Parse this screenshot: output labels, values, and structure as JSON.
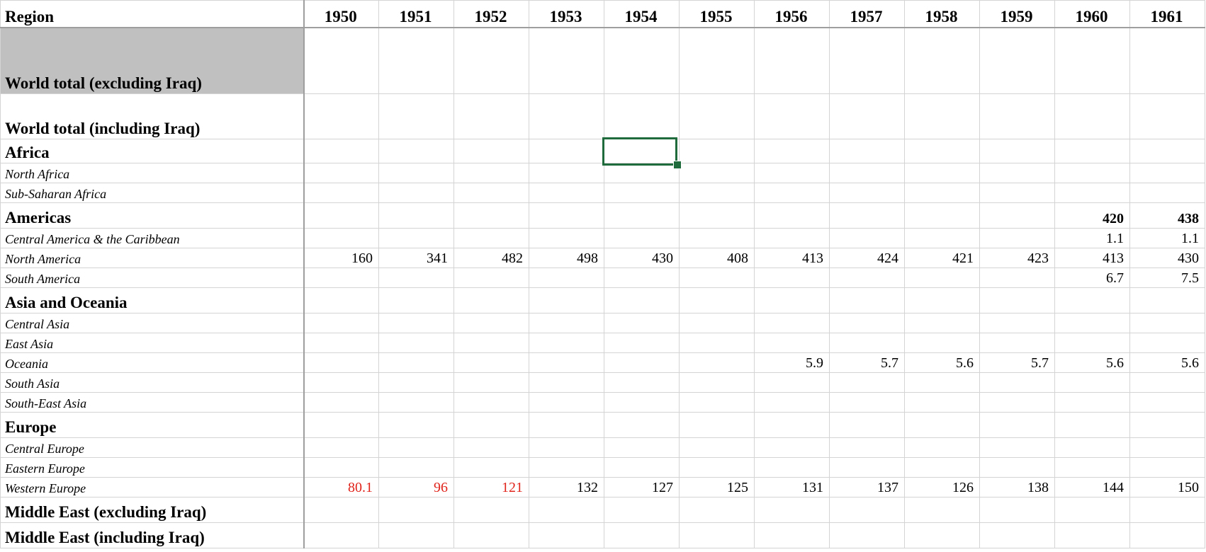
{
  "sheet": {
    "header": {
      "region_label": "Region",
      "years": [
        "1950",
        "1951",
        "1952",
        "1953",
        "1954",
        "1955",
        "1956",
        "1957",
        "1958",
        "1959",
        "1960",
        "1961"
      ]
    },
    "rows": [
      {
        "label": "World total (excluding Iraq)",
        "level": 0,
        "shaded": true,
        "values": [
          "",
          "",
          "",
          "",
          "",
          "",
          "",
          "",
          "",
          "",
          "",
          ""
        ]
      },
      {
        "label": "World total (including Iraq)",
        "level": 0,
        "values": [
          "",
          "",
          "",
          "",
          "",
          "",
          "",
          "",
          "",
          "",
          "",
          ""
        ]
      },
      {
        "label": "Africa",
        "level": 0,
        "values": [
          "",
          "",
          "",
          "",
          "",
          "",
          "",
          "",
          "",
          "",
          "",
          ""
        ]
      },
      {
        "label": "North Africa",
        "level": 1,
        "values": [
          "",
          "",
          "",
          "",
          "",
          "",
          "",
          "",
          "",
          "",
          "",
          ""
        ]
      },
      {
        "label": "Sub-Saharan Africa",
        "level": 1,
        "values": [
          "",
          "",
          "",
          "",
          "",
          "",
          "",
          "",
          "",
          "",
          "",
          ""
        ]
      },
      {
        "label": "Americas",
        "level": 0,
        "values": [
          "",
          "",
          "",
          "",
          "",
          "",
          "",
          "",
          "",
          "",
          "420",
          "438"
        ]
      },
      {
        "label": "Central America & the Caribbean",
        "level": 1,
        "values": [
          "",
          "",
          "",
          "",
          "",
          "",
          "",
          "",
          "",
          "",
          "1.1",
          "1.1"
        ]
      },
      {
        "label": "North America",
        "level": 1,
        "values": [
          "160",
          "341",
          "482",
          "498",
          "430",
          "408",
          "413",
          "424",
          "421",
          "423",
          "413",
          "430"
        ]
      },
      {
        "label": "South America",
        "level": 1,
        "values": [
          "",
          "",
          "",
          "",
          "",
          "",
          "",
          "",
          "",
          "",
          "6.7",
          "7.5"
        ]
      },
      {
        "label": "Asia and Oceania",
        "level": 0,
        "values": [
          "",
          "",
          "",
          "",
          "",
          "",
          "",
          "",
          "",
          "",
          "",
          ""
        ]
      },
      {
        "label": "Central Asia",
        "level": 1,
        "values": [
          "",
          "",
          "",
          "",
          "",
          "",
          "",
          "",
          "",
          "",
          "",
          ""
        ]
      },
      {
        "label": "East Asia",
        "level": 1,
        "values": [
          "",
          "",
          "",
          "",
          "",
          "",
          "",
          "",
          "",
          "",
          "",
          ""
        ]
      },
      {
        "label": "Oceania",
        "level": 1,
        "values": [
          "",
          "",
          "",
          "",
          "",
          "",
          "5.9",
          "5.7",
          "5.6",
          "5.7",
          "5.6",
          "5.6"
        ]
      },
      {
        "label": "South Asia",
        "level": 1,
        "values": [
          "",
          "",
          "",
          "",
          "",
          "",
          "",
          "",
          "",
          "",
          "",
          ""
        ]
      },
      {
        "label": "South-East Asia",
        "level": 1,
        "values": [
          "",
          "",
          "",
          "",
          "",
          "",
          "",
          "",
          "",
          "",
          "",
          ""
        ]
      },
      {
        "label": "Europe",
        "level": 0,
        "values": [
          "",
          "",
          "",
          "",
          "",
          "",
          "",
          "",
          "",
          "",
          "",
          ""
        ]
      },
      {
        "label": "Central Europe",
        "level": 1,
        "values": [
          "",
          "",
          "",
          "",
          "",
          "",
          "",
          "",
          "",
          "",
          "",
          ""
        ]
      },
      {
        "label": "Eastern Europe",
        "level": 1,
        "values": [
          "",
          "",
          "",
          "",
          "",
          "",
          "",
          "",
          "",
          "",
          "",
          ""
        ]
      },
      {
        "label": "Western Europe",
        "level": 1,
        "values": [
          "80.1",
          "96",
          "121",
          "132",
          "127",
          "125",
          "131",
          "137",
          "126",
          "138",
          "144",
          "150"
        ],
        "red_cols": [
          0,
          1,
          2
        ]
      },
      {
        "label": "Middle East (excluding Iraq)",
        "level": 0,
        "values": [
          "",
          "",
          "",
          "",
          "",
          "",
          "",
          "",
          "",
          "",
          "",
          ""
        ]
      },
      {
        "label": "Middle East (including Iraq)",
        "level": 0,
        "values": [
          "",
          "",
          "",
          "",
          "",
          "",
          "",
          "",
          "",
          "",
          "",
          ""
        ]
      }
    ],
    "selected_cell": {
      "row": "Africa",
      "year": "1954"
    },
    "colors": {
      "gridline": "#d4d4d4",
      "shaded_fill": "#c0c0c0",
      "selection": "#1f6b3c",
      "red_text": "#e0241b"
    }
  }
}
